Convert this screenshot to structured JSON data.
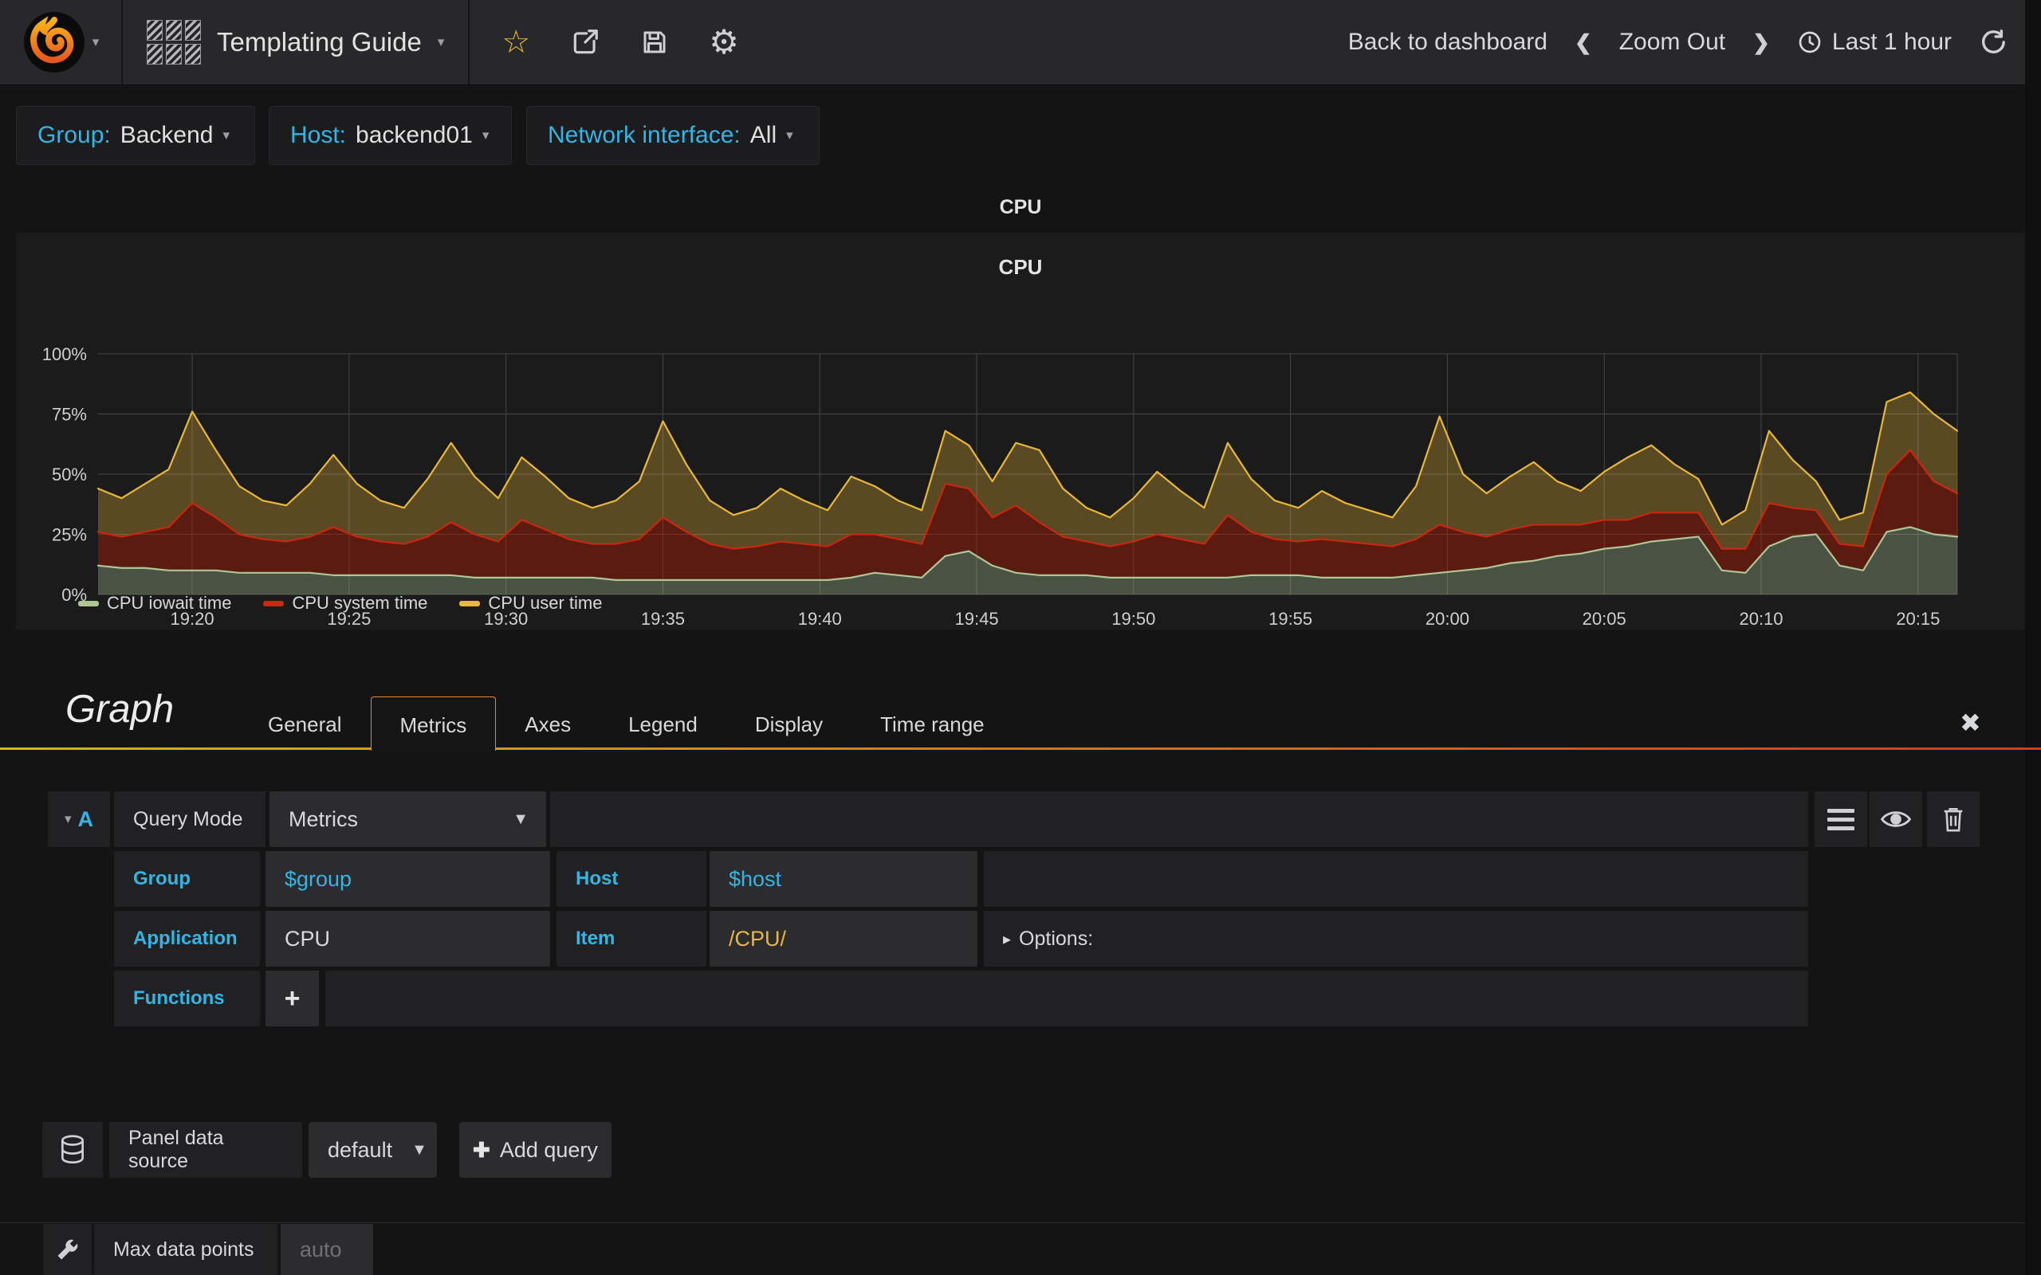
{
  "navbar": {
    "dashboard_title": "Templating Guide",
    "back_to_dashboard": "Back to dashboard",
    "zoom_out": "Zoom Out",
    "time_range": "Last 1 hour"
  },
  "variables": [
    {
      "label": "Group:",
      "value": "Backend"
    },
    {
      "label": "Host:",
      "value": "backend01"
    },
    {
      "label": "Network interface:",
      "value": "All"
    }
  ],
  "panel": {
    "title": "CPU",
    "chart_title": "CPU"
  },
  "chart_data": {
    "type": "area",
    "stacked": true,
    "title": "CPU",
    "xlabel": "",
    "ylabel": "",
    "ylim": [
      0,
      100
    ],
    "yticks": [
      "0%",
      "25%",
      "50%",
      "75%",
      "100%"
    ],
    "x_total_minutes": 59.25,
    "xticks": [
      {
        "min": 3,
        "label": "19:20"
      },
      {
        "min": 8,
        "label": "19:25"
      },
      {
        "min": 13,
        "label": "19:30"
      },
      {
        "min": 18,
        "label": "19:35"
      },
      {
        "min": 23,
        "label": "19:40"
      },
      {
        "min": 28,
        "label": "19:45"
      },
      {
        "min": 33,
        "label": "19:50"
      },
      {
        "min": 38,
        "label": "19:55"
      },
      {
        "min": 43,
        "label": "20:00"
      },
      {
        "min": 48,
        "label": "20:05"
      },
      {
        "min": 53,
        "label": "20:10"
      },
      {
        "min": 58,
        "label": "20:15"
      }
    ],
    "legend_position": "bottom-left",
    "grid": true,
    "series": [
      {
        "name": "CPU iowait time",
        "color": "#AEC795",
        "fill": "rgba(174,199,149,0.32)",
        "values": [
          12,
          11,
          11,
          10,
          10,
          10,
          9,
          9,
          9,
          9,
          8,
          8,
          8,
          8,
          8,
          8,
          7,
          7,
          7,
          7,
          7,
          7,
          6,
          6,
          6,
          6,
          6,
          6,
          6,
          6,
          6,
          6,
          7,
          9,
          8,
          7,
          16,
          18,
          12,
          9,
          8,
          8,
          8,
          7,
          7,
          7,
          7,
          7,
          7,
          8,
          8,
          8,
          7,
          7,
          7,
          7,
          8,
          9,
          10,
          11,
          13,
          14,
          16,
          17,
          19,
          20,
          22,
          23,
          24,
          10,
          9,
          20,
          24,
          25,
          12,
          10,
          26,
          28,
          25,
          24
        ]
      },
      {
        "name": "CPU system time",
        "color": "#C9280F",
        "fill": "rgba(191,27,0,0.40)",
        "values": [
          14,
          13,
          15,
          18,
          28,
          22,
          16,
          14,
          13,
          15,
          20,
          16,
          14,
          13,
          16,
          22,
          18,
          15,
          24,
          20,
          16,
          14,
          15,
          17,
          26,
          20,
          15,
          13,
          14,
          16,
          15,
          14,
          18,
          16,
          15,
          14,
          30,
          26,
          20,
          28,
          22,
          16,
          14,
          13,
          15,
          18,
          16,
          14,
          26,
          18,
          15,
          14,
          16,
          15,
          14,
          13,
          15,
          20,
          16,
          13,
          14,
          15,
          13,
          12,
          12,
          11,
          12,
          11,
          10,
          9,
          10,
          18,
          12,
          10,
          9,
          10,
          24,
          32,
          22,
          18
        ]
      },
      {
        "name": "CPU user time",
        "color": "#EAB839",
        "fill": "rgba(234,184,57,0.30)",
        "values": [
          18,
          16,
          20,
          24,
          38,
          28,
          20,
          16,
          15,
          22,
          30,
          22,
          17,
          15,
          24,
          33,
          24,
          18,
          26,
          22,
          17,
          15,
          18,
          24,
          40,
          28,
          18,
          14,
          16,
          22,
          18,
          15,
          24,
          20,
          16,
          14,
          22,
          18,
          15,
          26,
          30,
          20,
          14,
          12,
          18,
          26,
          20,
          15,
          30,
          22,
          16,
          14,
          20,
          16,
          14,
          12,
          22,
          45,
          24,
          18,
          22,
          26,
          18,
          14,
          20,
          26,
          28,
          20,
          14,
          10,
          16,
          30,
          20,
          12,
          10,
          14,
          30,
          24,
          28,
          26
        ]
      }
    ]
  },
  "editor": {
    "panel_type": "Graph",
    "tabs": [
      "General",
      "Metrics",
      "Axes",
      "Legend",
      "Display",
      "Time range"
    ],
    "active_tab": "Metrics",
    "query": {
      "ref_id": "A",
      "query_mode_label": "Query Mode",
      "query_mode_value": "Metrics",
      "group_label": "Group",
      "group_value": "$group",
      "host_label": "Host",
      "host_value": "$host",
      "application_label": "Application",
      "application_value": "CPU",
      "item_label": "Item",
      "item_value": "/CPU/",
      "options_label": "Options:",
      "functions_label": "Functions",
      "add_function_label": "+"
    },
    "datasource": {
      "label": "Panel data source",
      "value": "default",
      "add_query_label": "Add query"
    },
    "max_data_points": {
      "label": "Max data points",
      "placeholder": "auto"
    }
  },
  "colors": {
    "accent_cyan": "#33B5E5",
    "accent_gold": "#EAB839",
    "tab_gradient_left": "#dcb017",
    "tab_gradient_right": "#d23d18"
  }
}
